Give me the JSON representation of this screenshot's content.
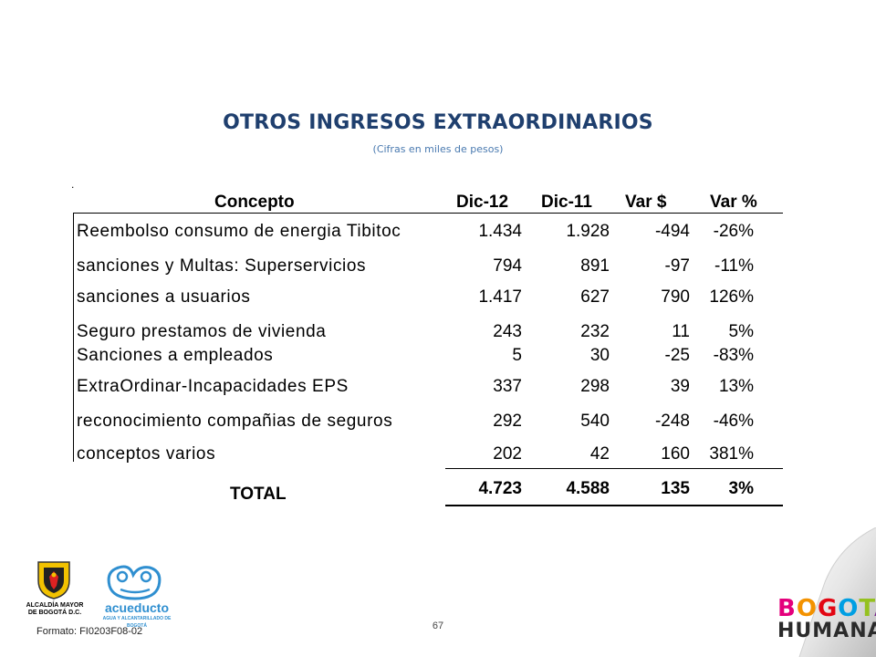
{
  "title": "OTROS INGRESOS EXTRAORDINARIOS",
  "subtitle": "(Cifras en miles de pesos)",
  "table": {
    "headers": [
      "Concepto",
      "Dic-12",
      "Dic-11",
      "Var $",
      "Var %"
    ],
    "rows": [
      [
        "Reembolso consumo de energia Tibitoc",
        "1.434",
        "1.928",
        "-494",
        "-26%"
      ],
      [
        "sanciones y Multas: Superservicios",
        "794",
        "891",
        "-97",
        "-11%"
      ],
      [
        "sanciones a usuarios",
        "1.417",
        "627",
        "790",
        "126%"
      ],
      [
        "Seguro prestamos de vivienda",
        "243",
        "232",
        "11",
        "5%"
      ],
      [
        "Sanciones a empleados",
        "5",
        "30",
        "-25",
        "-83%"
      ],
      [
        "ExtraOrdinar-Incapacidades EPS",
        "337",
        "298",
        "39",
        "13%"
      ],
      [
        "reconocimiento compañias de seguros",
        "292",
        "540",
        "-248",
        "-46%"
      ],
      [
        "conceptos varios",
        "202",
        "42",
        "160",
        "381%"
      ]
    ],
    "total": [
      "TOTAL",
      "4.723",
      "4.588",
      "135",
      "3%"
    ]
  },
  "footer": {
    "page_number": "67",
    "formato": "Formato: FI0203F08-02",
    "logo_alcaldia": "ALCALDÍA MAYOR DE BOGOTÁ D.C.",
    "logo_acueducto": "acueducto",
    "logo_acueducto_sub": "AGUA Y ALCANTARILLADO DE BOGOTÁ",
    "brand_line1": "BOGOTÁ",
    "brand_line2": "HUMANA"
  },
  "colors": {
    "title": "#1f3f6e",
    "subtitle": "#4a7ab0",
    "acueducto": "#2f8fd0"
  }
}
